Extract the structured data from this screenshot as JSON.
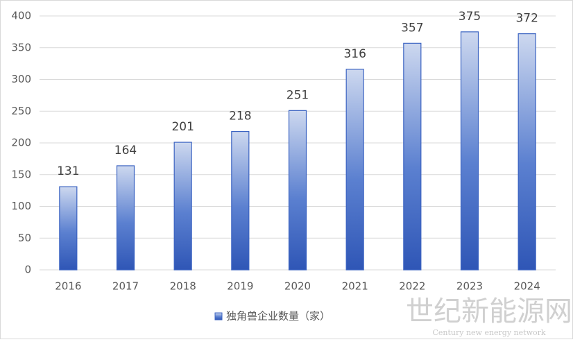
{
  "chart_data": {
    "type": "bar",
    "categories": [
      "2016",
      "2017",
      "2018",
      "2019",
      "2020",
      "2021",
      "2022",
      "2023",
      "2024"
    ],
    "series": [
      {
        "name": "独角兽企业数量（家）",
        "color": "#3b63c2",
        "values": [
          131,
          164,
          201,
          218,
          251,
          316,
          357,
          375,
          372
        ]
      }
    ],
    "ylim": [
      0,
      400
    ],
    "yticks": [
      0,
      50,
      100,
      150,
      200,
      250,
      300,
      350,
      400
    ],
    "grid": true,
    "legend": "bottom",
    "watermark": {
      "title": "世纪新能源网",
      "subtitle": "Century new energy network"
    }
  }
}
